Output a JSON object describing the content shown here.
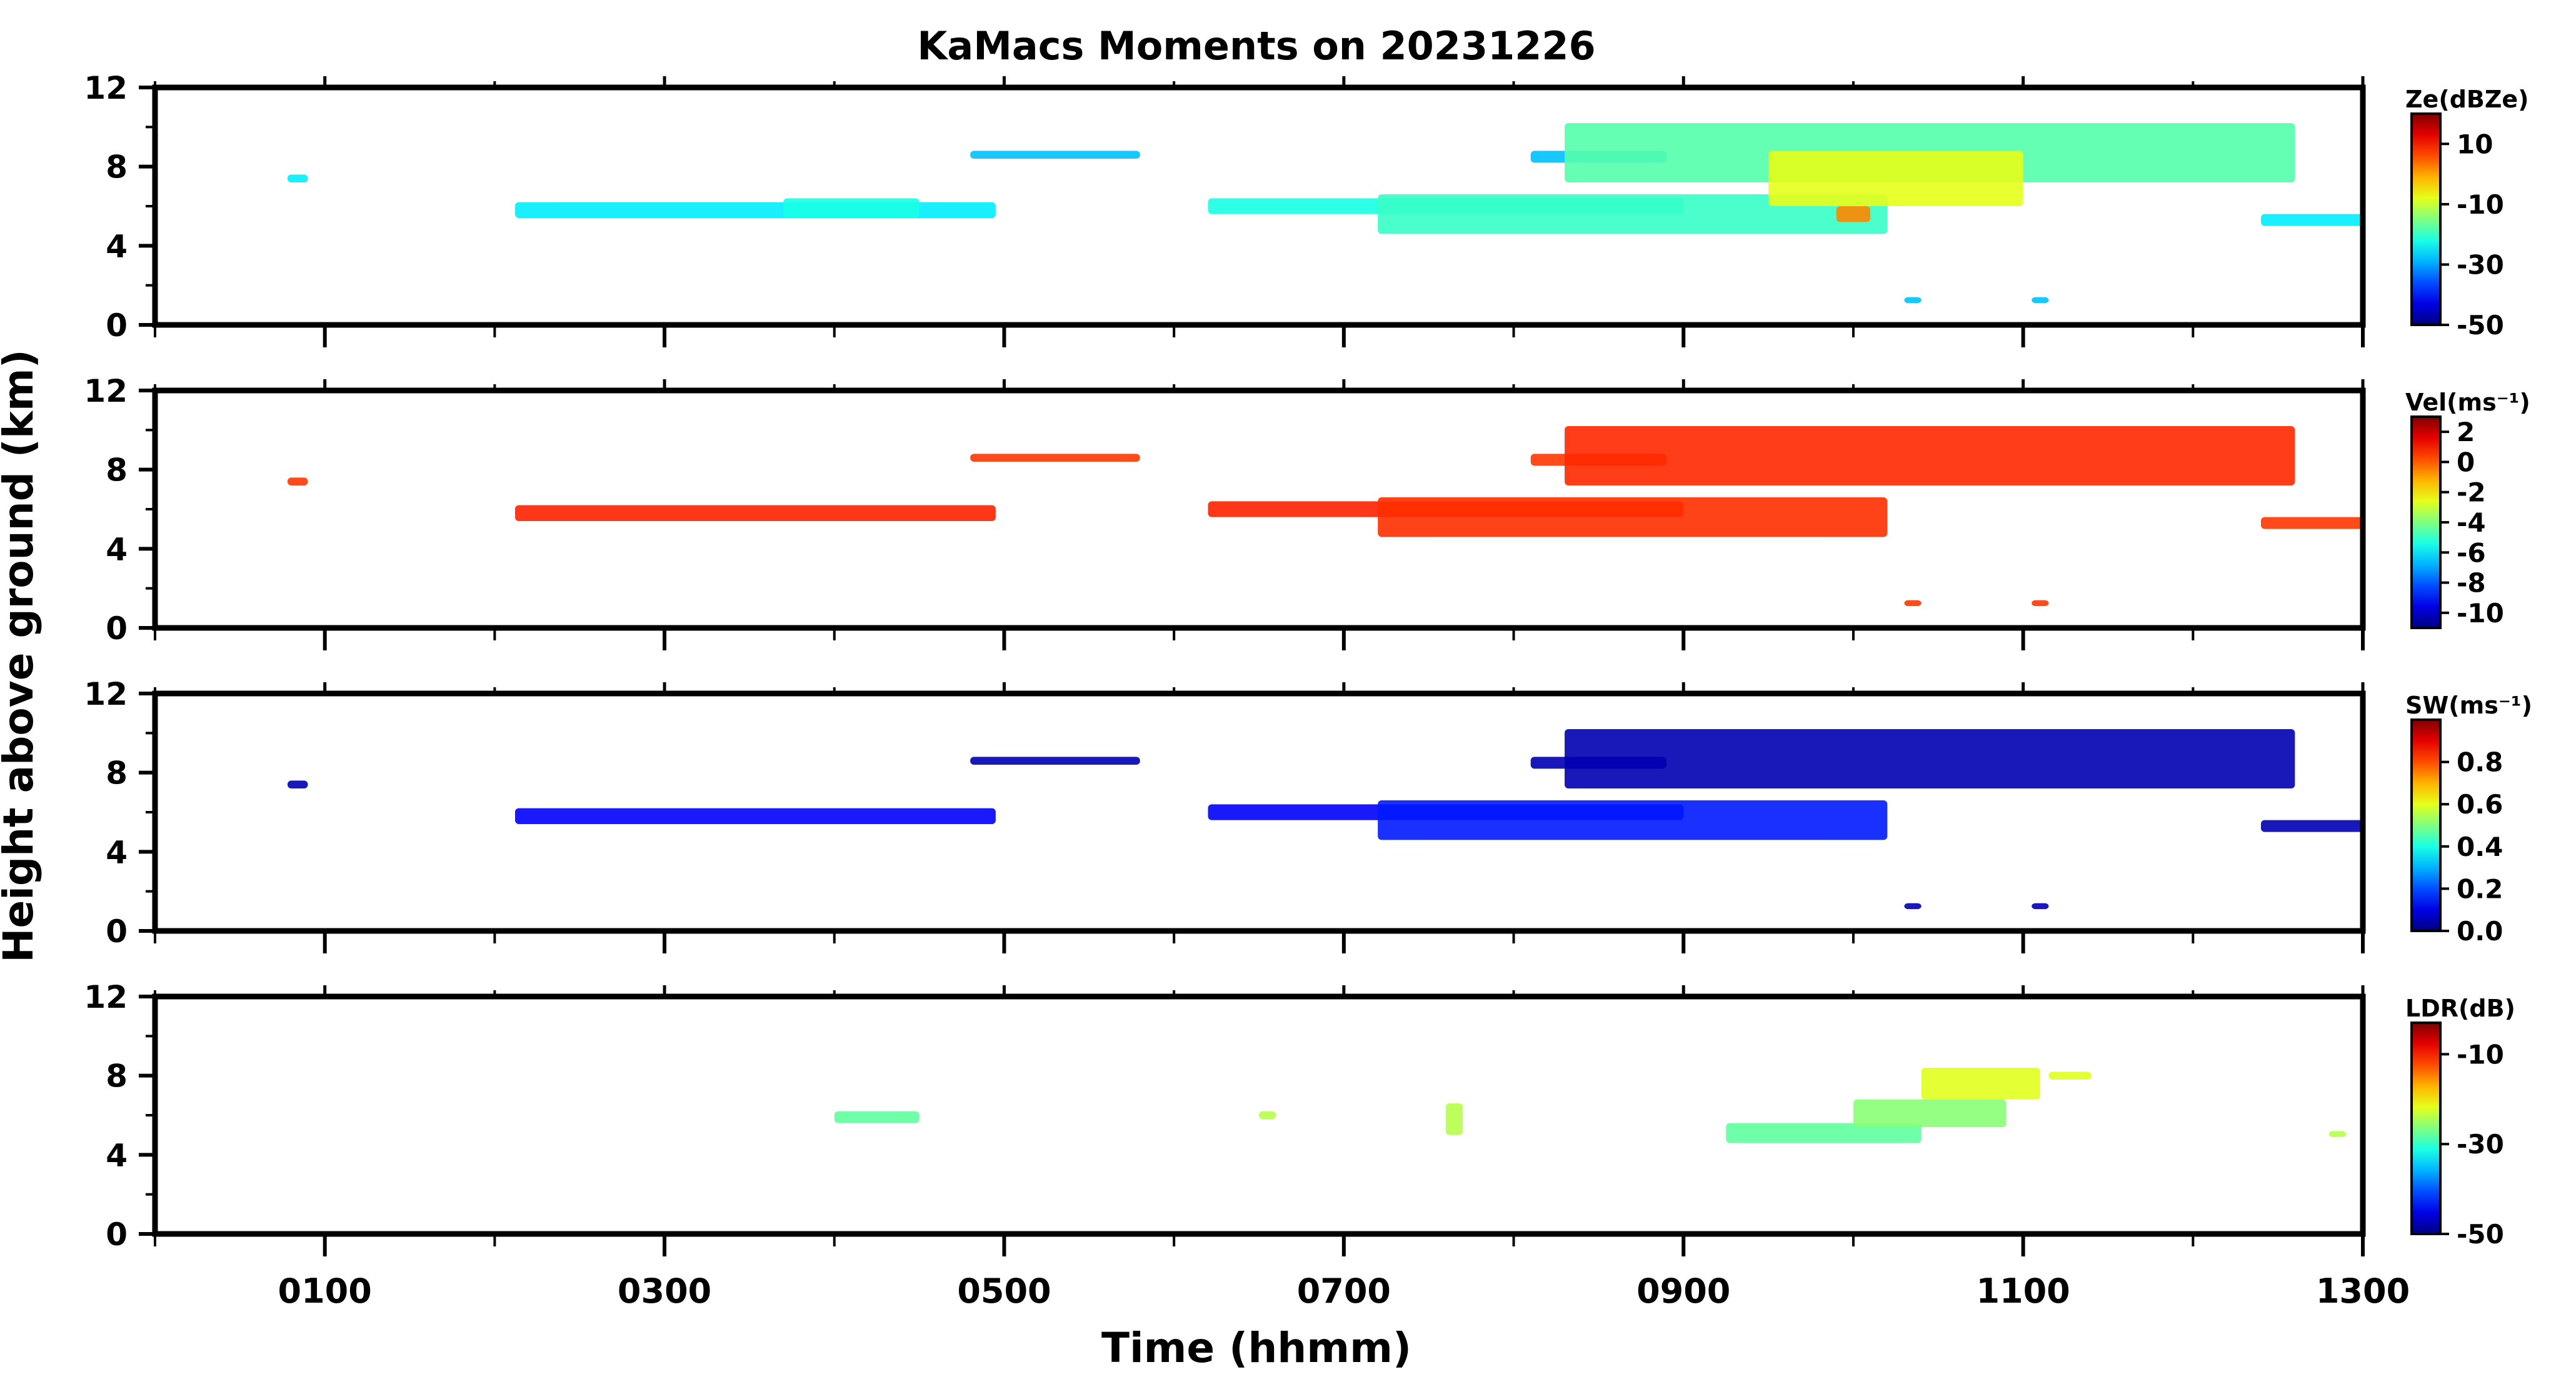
{
  "chart_data": {
    "type": "heatmap",
    "title": "KaMacs Moments on 20231226",
    "xlabel": "Time (hhmm)",
    "ylabel": "Height above ground (km)",
    "x_unit": "hours",
    "xlim": [
      0,
      13
    ],
    "x_ticks": [
      {
        "value": 1,
        "label": "0100"
      },
      {
        "value": 3,
        "label": "0300"
      },
      {
        "value": 5,
        "label": "0500"
      },
      {
        "value": 7,
        "label": "0700"
      },
      {
        "value": 9,
        "label": "0900"
      },
      {
        "value": 11,
        "label": "1100"
      },
      {
        "value": 13,
        "label": "1300"
      }
    ],
    "ylim": [
      0,
      12
    ],
    "y_ticks": [
      0,
      4,
      8,
      12
    ],
    "grid": false,
    "panels": [
      {
        "id": "ze",
        "colorbar_label": "Ze(dBZe)",
        "colorbar_range": [
          -50,
          20
        ],
        "colorbar_ticks": [
          {
            "value": 10,
            "label": "10"
          },
          {
            "value": -10,
            "label": "-10"
          },
          {
            "value": -30,
            "label": "-30"
          },
          {
            "value": -50,
            "label": "-50"
          }
        ],
        "color": "#1fb8ff",
        "regions": [
          {
            "x": [
              0.78,
              0.9
            ],
            "y": [
              7.2,
              7.6
            ],
            "value": -25
          },
          {
            "x": [
              2.12,
              4.95
            ],
            "y": [
              5.4,
              6.2
            ],
            "value": -25
          },
          {
            "x": [
              3.7,
              4.5
            ],
            "y": [
              5.4,
              6.4
            ],
            "value": -22
          },
          {
            "x": [
              4.8,
              5.8
            ],
            "y": [
              8.4,
              8.8
            ],
            "value": -28
          },
          {
            "x": [
              6.2,
              9.0
            ],
            "y": [
              5.6,
              6.4
            ],
            "value": -22
          },
          {
            "x": [
              7.2,
              10.2
            ],
            "y": [
              4.6,
              6.6
            ],
            "value": -20
          },
          {
            "x": [
              8.1,
              8.9
            ],
            "y": [
              8.2,
              8.8
            ],
            "value": -28
          },
          {
            "x": [
              8.3,
              12.6
            ],
            "y": [
              7.2,
              10.2
            ],
            "value": -18
          },
          {
            "x": [
              9.5,
              11.0
            ],
            "y": [
              6.0,
              8.8
            ],
            "value": -8
          },
          {
            "x": [
              9.9,
              10.1
            ],
            "y": [
              5.2,
              6.0
            ],
            "value": 2
          },
          {
            "x": [
              12.4,
              13.0
            ],
            "y": [
              5.0,
              5.6
            ],
            "value": -25
          },
          {
            "x": [
              10.3,
              10.4
            ],
            "y": [
              1.1,
              1.4
            ],
            "value": -28
          },
          {
            "x": [
              11.05,
              11.15
            ],
            "y": [
              1.1,
              1.4
            ],
            "value": -28
          }
        ]
      },
      {
        "id": "vel",
        "colorbar_label": "Vel(ms⁻¹)",
        "colorbar_range": [
          -11,
          3
        ],
        "colorbar_ticks": [
          {
            "value": 2,
            "label": "2"
          },
          {
            "value": 0,
            "label": "0"
          },
          {
            "value": -2,
            "label": "-2"
          },
          {
            "value": -4,
            "label": "-4"
          },
          {
            "value": -6,
            "label": "-6"
          },
          {
            "value": -8,
            "label": "-8"
          },
          {
            "value": -10,
            "label": "-10"
          }
        ],
        "color": "#ff9d1a",
        "regions": [
          {
            "x": [
              0.78,
              0.9
            ],
            "y": [
              7.2,
              7.6
            ],
            "value": 0.5
          },
          {
            "x": [
              2.12,
              4.95
            ],
            "y": [
              5.4,
              6.2
            ],
            "value": 0.8
          },
          {
            "x": [
              4.8,
              5.8
            ],
            "y": [
              8.4,
              8.8
            ],
            "value": 0.5
          },
          {
            "x": [
              6.2,
              9.0
            ],
            "y": [
              5.6,
              6.4
            ],
            "value": 0.8
          },
          {
            "x": [
              7.2,
              10.2
            ],
            "y": [
              4.6,
              6.6
            ],
            "value": 0.6
          },
          {
            "x": [
              8.1,
              8.9
            ],
            "y": [
              8.2,
              8.8
            ],
            "value": 0.5
          },
          {
            "x": [
              8.3,
              12.6
            ],
            "y": [
              7.2,
              10.2
            ],
            "value": 0.7
          },
          {
            "x": [
              12.4,
              13.0
            ],
            "y": [
              5.0,
              5.6
            ],
            "value": 0.5
          },
          {
            "x": [
              10.3,
              10.4
            ],
            "y": [
              1.1,
              1.4
            ],
            "value": 0.5
          },
          {
            "x": [
              11.05,
              11.15
            ],
            "y": [
              1.1,
              1.4
            ],
            "value": 0.5
          }
        ]
      },
      {
        "id": "sw",
        "colorbar_label": "SW(ms⁻¹)",
        "colorbar_range": [
          0,
          1.0
        ],
        "colorbar_ticks": [
          {
            "value": 0.8,
            "label": "0.8"
          },
          {
            "value": 0.6,
            "label": "0.6"
          },
          {
            "value": 0.4,
            "label": "0.4"
          },
          {
            "value": 0.2,
            "label": "0.2"
          },
          {
            "value": 0.0,
            "label": "0.0"
          }
        ],
        "color": "#1f3cd8",
        "regions": [
          {
            "x": [
              0.78,
              0.9
            ],
            "y": [
              7.2,
              7.6
            ],
            "value": 0.05
          },
          {
            "x": [
              2.12,
              4.95
            ],
            "y": [
              5.4,
              6.2
            ],
            "value": 0.12
          },
          {
            "x": [
              4.8,
              5.8
            ],
            "y": [
              8.4,
              8.8
            ],
            "value": 0.05
          },
          {
            "x": [
              6.2,
              9.0
            ],
            "y": [
              5.6,
              6.4
            ],
            "value": 0.12
          },
          {
            "x": [
              7.2,
              10.2
            ],
            "y": [
              4.6,
              6.6
            ],
            "value": 0.15
          },
          {
            "x": [
              8.1,
              8.9
            ],
            "y": [
              8.2,
              8.8
            ],
            "value": 0.05
          },
          {
            "x": [
              8.3,
              12.6
            ],
            "y": [
              7.2,
              10.2
            ],
            "value": 0.05
          },
          {
            "x": [
              12.4,
              13.0
            ],
            "y": [
              5.0,
              5.6
            ],
            "value": 0.05
          },
          {
            "x": [
              10.3,
              10.4
            ],
            "y": [
              1.1,
              1.4
            ],
            "value": 0.05
          },
          {
            "x": [
              11.05,
              11.15
            ],
            "y": [
              1.1,
              1.4
            ],
            "value": 0.05
          }
        ]
      },
      {
        "id": "ldr",
        "colorbar_label": "LDR(dB)",
        "colorbar_range": [
          -50,
          -3
        ],
        "colorbar_ticks": [
          {
            "value": -10,
            "label": "-10"
          },
          {
            "value": -30,
            "label": "-30"
          },
          {
            "value": -50,
            "label": "-50"
          }
        ],
        "color": "#6df0a0",
        "regions": [
          {
            "x": [
              4.0,
              4.5
            ],
            "y": [
              5.6,
              6.2
            ],
            "value": -28
          },
          {
            "x": [
              6.5,
              6.6
            ],
            "y": [
              5.8,
              6.2
            ],
            "value": -24
          },
          {
            "x": [
              7.6,
              7.7
            ],
            "y": [
              5.0,
              6.6
            ],
            "value": -24
          },
          {
            "x": [
              9.25,
              10.4
            ],
            "y": [
              4.6,
              5.6
            ],
            "value": -28
          },
          {
            "x": [
              10.0,
              10.9
            ],
            "y": [
              5.4,
              6.8
            ],
            "value": -26
          },
          {
            "x": [
              10.4,
              11.1
            ],
            "y": [
              6.8,
              8.4
            ],
            "value": -22
          },
          {
            "x": [
              11.15,
              11.4
            ],
            "y": [
              7.8,
              8.2
            ],
            "value": -22
          },
          {
            "x": [
              12.8,
              12.9
            ],
            "y": [
              4.9,
              5.2
            ],
            "value": -24
          }
        ]
      }
    ]
  }
}
